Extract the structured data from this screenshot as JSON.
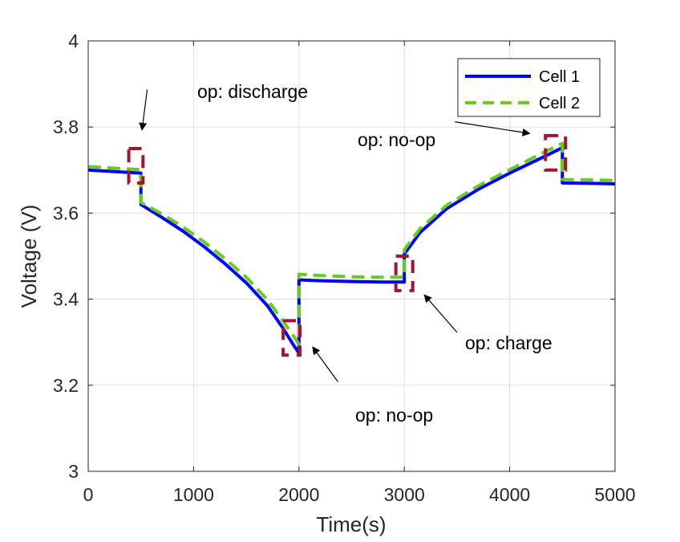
{
  "chart_data": {
    "type": "line",
    "title": "",
    "xlabel": "Time(s)",
    "ylabel": "Voltage (V)",
    "xlim": [
      0,
      5000
    ],
    "ylim": [
      3.0,
      4.0
    ],
    "xticks": [
      0,
      1000,
      2000,
      3000,
      4000,
      5000
    ],
    "xtick_labels": [
      "0",
      "1000",
      "2000",
      "3000",
      "4000",
      "5000"
    ],
    "yticks": [
      3.0,
      3.2,
      3.4,
      3.6,
      3.8,
      4.0
    ],
    "ytick_labels": [
      "3",
      "3.2",
      "3.4",
      "3.6",
      "3.8",
      "4"
    ],
    "grid": true,
    "legend_position": "top-right",
    "series": [
      {
        "name": "Cell 1",
        "color": "#0000ff",
        "style": "solid",
        "x": [
          0,
          500,
          500,
          700,
          900,
          1100,
          1300,
          1500,
          1700,
          1850,
          1950,
          2000,
          2000,
          2200,
          2500,
          2800,
          3000,
          3000,
          3150,
          3400,
          3700,
          4000,
          4300,
          4500,
          4500,
          4800,
          5000
        ],
        "y": [
          3.7,
          3.693,
          3.62,
          3.59,
          3.558,
          3.522,
          3.482,
          3.438,
          3.385,
          3.332,
          3.293,
          3.275,
          3.445,
          3.443,
          3.441,
          3.44,
          3.44,
          3.505,
          3.555,
          3.61,
          3.655,
          3.693,
          3.728,
          3.752,
          3.67,
          3.669,
          3.668
        ]
      },
      {
        "name": "Cell 2",
        "color": "#66cc22",
        "style": "dashed",
        "x": [
          0,
          500,
          500,
          700,
          900,
          1100,
          1300,
          1500,
          1700,
          1850,
          1950,
          2000,
          2000,
          2200,
          2500,
          2800,
          3000,
          3000,
          3150,
          3400,
          3700,
          4000,
          4300,
          4500,
          4500,
          4800,
          5000
        ],
        "y": [
          3.708,
          3.701,
          3.625,
          3.598,
          3.568,
          3.533,
          3.494,
          3.451,
          3.399,
          3.349,
          3.314,
          3.295,
          3.458,
          3.455,
          3.452,
          3.451,
          3.451,
          3.515,
          3.564,
          3.618,
          3.663,
          3.701,
          3.738,
          3.762,
          3.678,
          3.677,
          3.676
        ]
      }
    ],
    "annotations": [
      {
        "text": "op: discharge",
        "box_x": [
          385,
          520
        ],
        "box_y": [
          3.67,
          3.75
        ],
        "arrow_from": [
          560,
          3.887
        ],
        "arrow_to": [
          510,
          3.793
        ]
      },
      {
        "text": "op: no-op",
        "box_x": [
          1850,
          2010
        ],
        "box_y": [
          3.27,
          3.35
        ],
        "arrow_from": [
          2370,
          3.208
        ],
        "arrow_to": [
          2130,
          3.289
        ]
      },
      {
        "text": "op: charge",
        "box_x": [
          2920,
          3080
        ],
        "box_y": [
          3.42,
          3.5
        ],
        "arrow_from": [
          3500,
          3.323
        ],
        "arrow_to": [
          3190,
          3.41
        ]
      },
      {
        "text": "op: no-op",
        "box_x": [
          4340,
          4530
        ],
        "box_y": [
          3.7,
          3.78
        ],
        "arrow_from": [
          3480,
          3.812
        ],
        "arrow_to": [
          4190,
          3.785
        ]
      }
    ],
    "annotation_color": "#a2142f"
  }
}
